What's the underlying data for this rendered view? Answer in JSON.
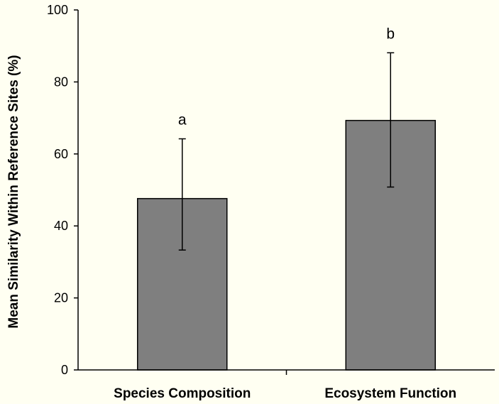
{
  "chart_data": {
    "type": "bar",
    "title": "",
    "xlabel": "",
    "ylabel": "Mean Similarity Within Reference Sites (%)",
    "categories": [
      "Species Composition",
      "Ecosystem Function"
    ],
    "values": [
      47.6,
      69.3
    ],
    "error_upper": [
      64.2,
      88.1
    ],
    "error_lower": [
      33.3,
      50.8
    ],
    "significance_letters": [
      "a",
      "b"
    ],
    "ylim": [
      0,
      100
    ],
    "yticks": [
      "0",
      "20",
      "40",
      "60",
      "80",
      "100"
    ],
    "grid": false,
    "legend": "none",
    "colors": {
      "bar_fill": "#7f7f7f",
      "bar_stroke": "#000000",
      "axis": "#000000",
      "background": "#fffff2"
    }
  }
}
